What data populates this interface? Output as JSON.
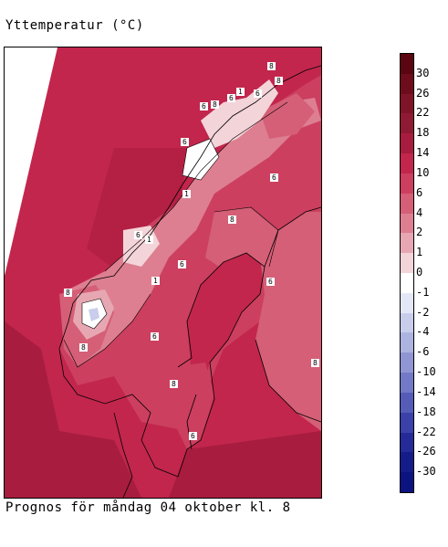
{
  "title": "Yttemperatur (°C)",
  "caption": "Prognos för måndag 04 oktober kl. 8",
  "legend": {
    "labels": [
      "30",
      "26",
      "22",
      "18",
      "14",
      "10",
      "6",
      "4",
      "2",
      "1",
      "0",
      "-1",
      "-2",
      "-4",
      "-6",
      "-10",
      "-14",
      "-18",
      "-22",
      "-26",
      "-30"
    ],
    "colors": [
      "#5a0510",
      "#6e0c1c",
      "#7f1428",
      "#8f1a33",
      "#a81d3f",
      "#c2264d",
      "#cc3f5f",
      "#d45f76",
      "#dd7f90",
      "#e7a7b2",
      "#f3d4d9",
      "#ffffff",
      "#e4e7f6",
      "#c8cdec",
      "#adb3e0",
      "#9096d3",
      "#7279c6",
      "#545cb8",
      "#3a41a8",
      "#242b98",
      "#141c8a",
      "#0b1380"
    ]
  },
  "map": {
    "iso_labels": [
      "8",
      "8",
      "6",
      "6",
      "6",
      "1",
      "8",
      "6",
      "1",
      "6",
      "1",
      "6",
      "8",
      "8",
      "6",
      "8",
      "6",
      "8",
      "6",
      "1",
      "6",
      "8"
    ]
  }
}
